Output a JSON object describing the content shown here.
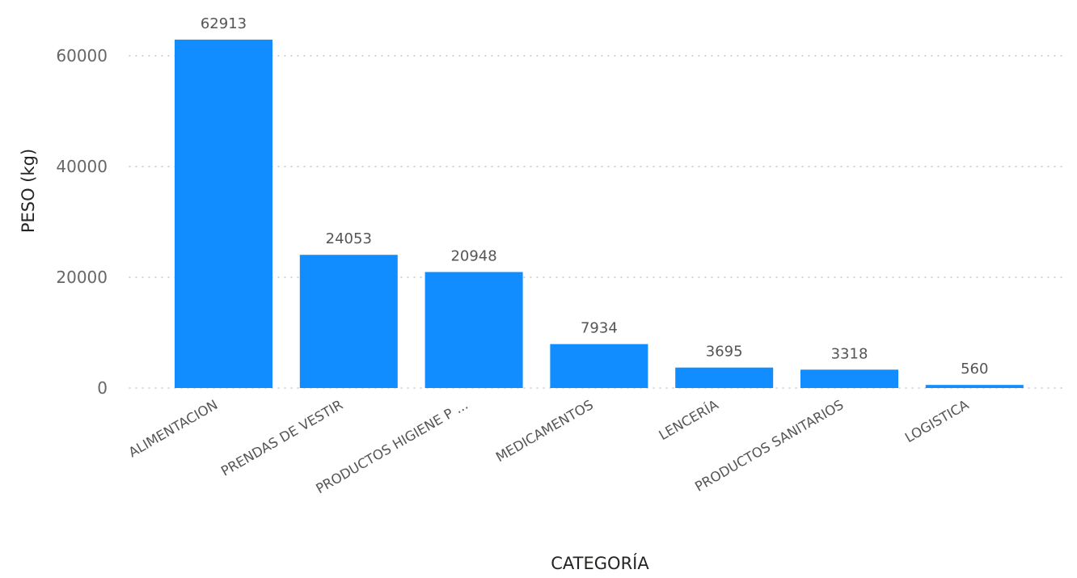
{
  "chart_data": {
    "type": "bar",
    "categories": [
      "ALIMENTACION",
      "PRENDAS DE VESTIR",
      "PRODUCTOS HIGIENE P ...",
      "MEDICAMENTOS",
      "LENCERÍA",
      "PRODUCTOS SANITARIOS",
      "LOGISTICA"
    ],
    "values": [
      62913,
      24053,
      20948,
      7934,
      3695,
      3318,
      560
    ],
    "data_labels": [
      "62913",
      "24053",
      "20948",
      "7934",
      "3695",
      "3318",
      "560"
    ],
    "xlabel": "CATEGORÍA",
    "ylabel": "PESO (kg)",
    "ylim": [
      0,
      67000
    ],
    "yticks": [
      0,
      20000,
      40000,
      60000
    ],
    "ytick_labels": [
      "0",
      "20000",
      "40000",
      "60000"
    ],
    "grid": true,
    "bar_color": "#118dff"
  }
}
